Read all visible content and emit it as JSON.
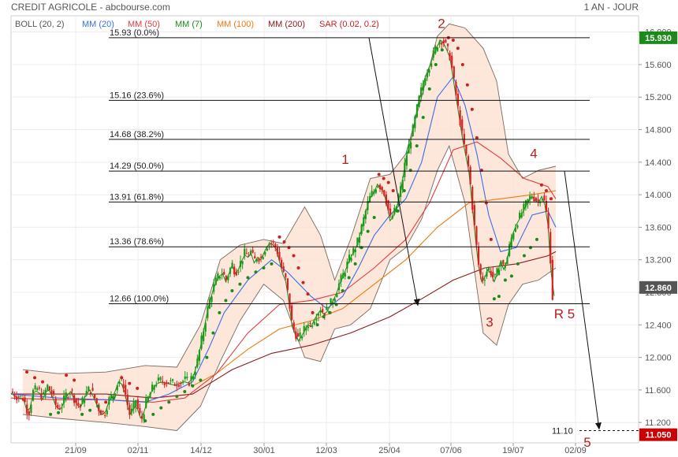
{
  "header": {
    "title": "CREDIT AGRICOLE - abcbourse.com",
    "period": "1 AN - JOUR"
  },
  "legend": [
    {
      "label": "BOLL (20, 2)",
      "color": "#555555"
    },
    {
      "label": "MM (20)",
      "color": "#3a6ee8"
    },
    {
      "label": "MM (50)",
      "color": "#e23b3b"
    },
    {
      "label": "MM (7)",
      "color": "#1a8a1a"
    },
    {
      "label": "MM (100)",
      "color": "#f07a10"
    },
    {
      "label": "MM (200)",
      "color": "#8b1a1a"
    },
    {
      "label": "SAR (0.02, 0.2)",
      "color": "#cc1f1f"
    }
  ],
  "chart_data": {
    "type": "line",
    "subtype": "candlestick",
    "x_ticks": [
      "21/09",
      "02/11",
      "14/12",
      "30/01",
      "12/03",
      "25/04",
      "07/06",
      "19/07",
      "02/09"
    ],
    "y_ticks": [
      "16.000",
      "15.600",
      "15.200",
      "14.800",
      "14.400",
      "14.000",
      "13.600",
      "13.200",
      "12.800",
      "12.400",
      "12.000",
      "11.600",
      "11.200"
    ],
    "ylim": [
      10.95,
      16.2
    ],
    "last_price": {
      "label": "12.860",
      "value": 12.86,
      "color": "#555555"
    },
    "target_price": {
      "label": "11.050",
      "value": 11.05,
      "color": "#cc0000"
    },
    "top_price": {
      "label": "15.930",
      "value": 15.93,
      "color": "#1a8a1a"
    },
    "fibonacci": [
      {
        "value": 15.93,
        "label": "15.93  (0.0%)"
      },
      {
        "value": 15.16,
        "label": "15.16  (23.6%)"
      },
      {
        "value": 14.68,
        "label": "14.68  (38.2%)"
      },
      {
        "value": 14.29,
        "label": "14.29  (50.0%)"
      },
      {
        "value": 13.91,
        "label": "13.91  (61.8%)"
      },
      {
        "value": 13.36,
        "label": "13.36  (78.6%)"
      },
      {
        "value": 12.66,
        "label": "12.66  (100.0%)"
      }
    ],
    "target_line": {
      "value": 11.1,
      "label": "11.10"
    },
    "wave_labels": [
      {
        "text": "1",
        "price": 14.38
      },
      {
        "text": "2",
        "price": 16.05
      },
      {
        "text": "3",
        "price": 12.38
      },
      {
        "text": "4",
        "price": 14.45
      },
      {
        "text": "R 5",
        "price": 12.48
      },
      {
        "text": "5",
        "price": 10.9
      }
    ],
    "price_path": [
      [
        0,
        11.58
      ],
      [
        8,
        11.52
      ],
      [
        16,
        11.5
      ],
      [
        22,
        11.3
      ],
      [
        28,
        11.58
      ],
      [
        34,
        11.62
      ],
      [
        40,
        11.5
      ],
      [
        46,
        11.65
      ],
      [
        52,
        11.55
      ],
      [
        58,
        11.38
      ],
      [
        64,
        11.4
      ],
      [
        70,
        11.55
      ],
      [
        76,
        11.6
      ],
      [
        82,
        11.45
      ],
      [
        88,
        11.4
      ],
      [
        94,
        11.55
      ],
      [
        100,
        11.62
      ],
      [
        106,
        11.5
      ],
      [
        112,
        11.35
      ],
      [
        118,
        11.3
      ],
      [
        124,
        11.48
      ],
      [
        130,
        11.55
      ],
      [
        136,
        11.72
      ],
      [
        142,
        11.68
      ],
      [
        146,
        11.5
      ],
      [
        150,
        11.3
      ],
      [
        154,
        11.35
      ],
      [
        158,
        11.48
      ],
      [
        162,
        11.3
      ],
      [
        166,
        11.25
      ],
      [
        170,
        11.42
      ],
      [
        176,
        11.55
      ],
      [
        182,
        11.68
      ],
      [
        190,
        11.72
      ],
      [
        198,
        11.7
      ],
      [
        206,
        11.68
      ],
      [
        214,
        11.7
      ],
      [
        220,
        11.72
      ],
      [
        226,
        11.7
      ],
      [
        232,
        11.82
      ],
      [
        236,
        11.95
      ],
      [
        240,
        12.15
      ],
      [
        244,
        12.35
      ],
      [
        248,
        12.55
      ],
      [
        252,
        12.72
      ],
      [
        256,
        12.85
      ],
      [
        260,
        12.95
      ],
      [
        264,
        13.02
      ],
      [
        268,
        13.05
      ],
      [
        272,
        12.95
      ],
      [
        276,
        13.05
      ],
      [
        280,
        13.15
      ],
      [
        284,
        13.05
      ],
      [
        288,
        13.1
      ],
      [
        292,
        13.2
      ],
      [
        296,
        13.28
      ],
      [
        300,
        13.25
      ],
      [
        304,
        13.3
      ],
      [
        308,
        13.18
      ],
      [
        312,
        13.25
      ],
      [
        316,
        13.22
      ],
      [
        320,
        13.3
      ],
      [
        324,
        13.38
      ],
      [
        328,
        13.42
      ],
      [
        332,
        13.4
      ],
      [
        336,
        13.35
      ],
      [
        340,
        13.2
      ],
      [
        344,
        13.05
      ],
      [
        348,
        12.95
      ],
      [
        352,
        12.7
      ],
      [
        356,
        12.4
      ],
      [
        360,
        12.3
      ],
      [
        364,
        12.22
      ],
      [
        368,
        12.28
      ],
      [
        372,
        12.35
      ],
      [
        376,
        12.42
      ],
      [
        380,
        12.4
      ],
      [
        384,
        12.48
      ],
      [
        388,
        12.55
      ],
      [
        392,
        12.6
      ],
      [
        396,
        12.55
      ],
      [
        400,
        12.58
      ],
      [
        404,
        12.65
      ],
      [
        408,
        12.72
      ],
      [
        412,
        12.8
      ],
      [
        416,
        12.92
      ],
      [
        420,
        13.0
      ],
      [
        424,
        13.1
      ],
      [
        428,
        13.2
      ],
      [
        432,
        13.28
      ],
      [
        436,
        13.35
      ],
      [
        440,
        13.45
      ],
      [
        444,
        13.6
      ],
      [
        448,
        13.75
      ],
      [
        452,
        13.9
      ],
      [
        456,
        14.0
      ],
      [
        460,
        14.05
      ],
      [
        464,
        14.15
      ],
      [
        468,
        14.1
      ],
      [
        472,
        14.05
      ],
      [
        476,
        13.9
      ],
      [
        480,
        13.7
      ],
      [
        484,
        13.75
      ],
      [
        488,
        13.85
      ],
      [
        492,
        14.0
      ],
      [
        496,
        14.2
      ],
      [
        500,
        14.45
      ],
      [
        504,
        14.6
      ],
      [
        508,
        14.75
      ],
      [
        512,
        14.95
      ],
      [
        516,
        15.15
      ],
      [
        520,
        15.3
      ],
      [
        524,
        15.45
      ],
      [
        528,
        15.55
      ],
      [
        532,
        15.65
      ],
      [
        536,
        15.75
      ],
      [
        540,
        15.85
      ],
      [
        544,
        15.92
      ],
      [
        548,
        15.88
      ],
      [
        552,
        15.8
      ],
      [
        556,
        15.7
      ],
      [
        560,
        15.45
      ],
      [
        564,
        15.2
      ],
      [
        568,
        14.95
      ],
      [
        572,
        14.7
      ],
      [
        576,
        14.5
      ],
      [
        580,
        14.3
      ],
      [
        584,
        13.9
      ],
      [
        588,
        13.5
      ],
      [
        592,
        13.15
      ],
      [
        596,
        12.95
      ],
      [
        600,
        13.0
      ],
      [
        604,
        13.1
      ],
      [
        608,
        13.05
      ],
      [
        612,
        12.95
      ],
      [
        616,
        13.05
      ],
      [
        620,
        13.2
      ],
      [
        624,
        13.1
      ],
      [
        628,
        13.2
      ],
      [
        632,
        13.4
      ],
      [
        636,
        13.55
      ],
      [
        640,
        13.65
      ],
      [
        644,
        13.72
      ],
      [
        648,
        13.8
      ],
      [
        652,
        13.88
      ],
      [
        656,
        13.95
      ],
      [
        660,
        14.0
      ],
      [
        664,
        13.95
      ],
      [
        668,
        13.92
      ],
      [
        672,
        14.0
      ],
      [
        676,
        13.9
      ],
      [
        680,
        13.65
      ],
      [
        683,
        13.25
      ],
      [
        686,
        12.7
      ],
      [
        690,
        12.85
      ]
    ],
    "ma20_path": [
      [
        0,
        11.55
      ],
      [
        60,
        11.5
      ],
      [
        120,
        11.48
      ],
      [
        170,
        11.45
      ],
      [
        200,
        11.55
      ],
      [
        230,
        11.7
      ],
      [
        250,
        12.1
      ],
      [
        270,
        12.55
      ],
      [
        300,
        12.95
      ],
      [
        330,
        13.2
      ],
      [
        350,
        13.05
      ],
      [
        380,
        12.75
      ],
      [
        400,
        12.6
      ],
      [
        420,
        12.75
      ],
      [
        440,
        13.1
      ],
      [
        460,
        13.5
      ],
      [
        480,
        13.75
      ],
      [
        500,
        13.95
      ],
      [
        520,
        14.4
      ],
      [
        540,
        15.2
      ],
      [
        560,
        15.45
      ],
      [
        575,
        15.1
      ],
      [
        590,
        14.5
      ],
      [
        605,
        13.75
      ],
      [
        620,
        13.3
      ],
      [
        640,
        13.35
      ],
      [
        660,
        13.75
      ],
      [
        680,
        13.8
      ],
      [
        690,
        13.6
      ]
    ],
    "ma50_path": [
      [
        0,
        11.5
      ],
      [
        60,
        11.48
      ],
      [
        120,
        11.48
      ],
      [
        180,
        11.45
      ],
      [
        220,
        11.5
      ],
      [
        260,
        11.8
      ],
      [
        300,
        12.3
      ],
      [
        340,
        12.65
      ],
      [
        380,
        12.7
      ],
      [
        420,
        12.8
      ],
      [
        460,
        13.1
      ],
      [
        500,
        13.45
      ],
      [
        530,
        13.9
      ],
      [
        560,
        14.55
      ],
      [
        590,
        14.65
      ],
      [
        620,
        14.45
      ],
      [
        650,
        14.2
      ],
      [
        680,
        14.1
      ],
      [
        690,
        13.95
      ]
    ],
    "ma100_path": [
      [
        230,
        11.65
      ],
      [
        260,
        11.8
      ],
      [
        300,
        12.1
      ],
      [
        340,
        12.35
      ],
      [
        380,
        12.45
      ],
      [
        420,
        12.6
      ],
      [
        460,
        12.9
      ],
      [
        500,
        13.2
      ],
      [
        540,
        13.6
      ],
      [
        580,
        13.9
      ],
      [
        620,
        13.95
      ],
      [
        660,
        14.0
      ],
      [
        690,
        14.05
      ]
    ],
    "ma200_path": [
      [
        0,
        11.55
      ],
      [
        60,
        11.55
      ],
      [
        120,
        11.55
      ],
      [
        180,
        11.5
      ],
      [
        230,
        11.55
      ],
      [
        280,
        11.85
      ],
      [
        330,
        12.05
      ],
      [
        380,
        12.15
      ],
      [
        430,
        12.3
      ],
      [
        480,
        12.5
      ],
      [
        520,
        12.72
      ],
      [
        560,
        12.95
      ],
      [
        600,
        13.1
      ],
      [
        640,
        13.15
      ],
      [
        680,
        13.25
      ],
      [
        690,
        13.3
      ]
    ],
    "boll_upper_path": [
      [
        15,
        11.85
      ],
      [
        60,
        11.8
      ],
      [
        120,
        11.82
      ],
      [
        170,
        11.9
      ],
      [
        210,
        11.88
      ],
      [
        240,
        12.4
      ],
      [
        265,
        13.2
      ],
      [
        290,
        13.38
      ],
      [
        320,
        13.45
      ],
      [
        345,
        13.4
      ],
      [
        372,
        13.85
      ],
      [
        392,
        13.5
      ],
      [
        410,
        12.95
      ],
      [
        430,
        13.45
      ],
      [
        455,
        14.2
      ],
      [
        480,
        14.25
      ],
      [
        500,
        14.5
      ],
      [
        520,
        15.2
      ],
      [
        540,
        15.95
      ],
      [
        555,
        16.1
      ],
      [
        575,
        16.05
      ],
      [
        598,
        15.8
      ],
      [
        615,
        15.4
      ],
      [
        630,
        14.5
      ],
      [
        648,
        14.2
      ],
      [
        668,
        14.3
      ],
      [
        690,
        14.35
      ]
    ],
    "boll_lower_path": [
      [
        15,
        11.3
      ],
      [
        60,
        11.25
      ],
      [
        120,
        11.2
      ],
      [
        170,
        11.15
      ],
      [
        210,
        11.1
      ],
      [
        240,
        11.4
      ],
      [
        265,
        11.95
      ],
      [
        290,
        12.45
      ],
      [
        320,
        12.9
      ],
      [
        345,
        12.7
      ],
      [
        372,
        12.0
      ],
      [
        392,
        11.95
      ],
      [
        410,
        12.35
      ],
      [
        430,
        12.4
      ],
      [
        455,
        12.6
      ],
      [
        480,
        13.2
      ],
      [
        500,
        13.35
      ],
      [
        520,
        13.7
      ],
      [
        540,
        14.3
      ],
      [
        555,
        14.6
      ],
      [
        575,
        13.9
      ],
      [
        598,
        12.3
      ],
      [
        615,
        12.15
      ],
      [
        630,
        12.65
      ],
      [
        648,
        12.9
      ],
      [
        668,
        12.95
      ],
      [
        690,
        13.1
      ]
    ],
    "sar_dots": [
      [
        20,
        11.82
      ],
      [
        30,
        11.75
      ],
      [
        40,
        11.7
      ],
      [
        50,
        11.3
      ],
      [
        60,
        11.32
      ],
      [
        70,
        11.78
      ],
      [
        80,
        11.72
      ],
      [
        90,
        11.3
      ],
      [
        100,
        11.35
      ],
      [
        110,
        11.4
      ],
      [
        120,
        11.45
      ],
      [
        130,
        11.5
      ],
      [
        140,
        11.75
      ],
      [
        150,
        11.68
      ],
      [
        160,
        11.62
      ],
      [
        170,
        11.22
      ],
      [
        180,
        11.3
      ],
      [
        190,
        11.38
      ],
      [
        200,
        11.45
      ],
      [
        210,
        11.52
      ],
      [
        220,
        11.58
      ],
      [
        230,
        11.65
      ],
      [
        240,
        11.72
      ],
      [
        248,
        12.0
      ],
      [
        256,
        12.3
      ],
      [
        264,
        12.55
      ],
      [
        272,
        12.7
      ],
      [
        280,
        12.82
      ],
      [
        290,
        12.9
      ],
      [
        300,
        12.98
      ],
      [
        310,
        13.05
      ],
      [
        320,
        13.1
      ],
      [
        330,
        13.15
      ],
      [
        340,
        13.48
      ],
      [
        346,
        13.42
      ],
      [
        352,
        13.35
      ],
      [
        358,
        13.25
      ],
      [
        364,
        13.1
      ],
      [
        370,
        12.92
      ],
      [
        376,
        12.78
      ],
      [
        382,
        12.55
      ],
      [
        388,
        12.4
      ],
      [
        396,
        12.5
      ],
      [
        404,
        12.55
      ],
      [
        412,
        12.65
      ],
      [
        420,
        12.82
      ],
      [
        428,
        12.98
      ],
      [
        436,
        13.15
      ],
      [
        444,
        13.35
      ],
      [
        452,
        13.55
      ],
      [
        460,
        13.72
      ],
      [
        466,
        14.25
      ],
      [
        472,
        14.2
      ],
      [
        478,
        14.15
      ],
      [
        484,
        14.05
      ],
      [
        490,
        13.8
      ],
      [
        498,
        14.05
      ],
      [
        506,
        14.3
      ],
      [
        514,
        14.6
      ],
      [
        522,
        14.95
      ],
      [
        530,
        15.3
      ],
      [
        538,
        15.6
      ],
      [
        546,
        15.78
      ],
      [
        554,
        15.93
      ],
      [
        560,
        15.9
      ],
      [
        566,
        15.8
      ],
      [
        572,
        15.6
      ],
      [
        578,
        15.35
      ],
      [
        584,
        15.05
      ],
      [
        590,
        14.7
      ],
      [
        596,
        14.3
      ],
      [
        602,
        13.9
      ],
      [
        608,
        13.45
      ],
      [
        612,
        12.72
      ],
      [
        618,
        12.75
      ],
      [
        626,
        12.95
      ],
      [
        634,
        13.0
      ],
      [
        642,
        13.15
      ],
      [
        650,
        13.25
      ],
      [
        658,
        13.35
      ],
      [
        666,
        13.45
      ],
      [
        672,
        14.12
      ],
      [
        678,
        14.05
      ],
      [
        684,
        13.95
      ]
    ]
  }
}
